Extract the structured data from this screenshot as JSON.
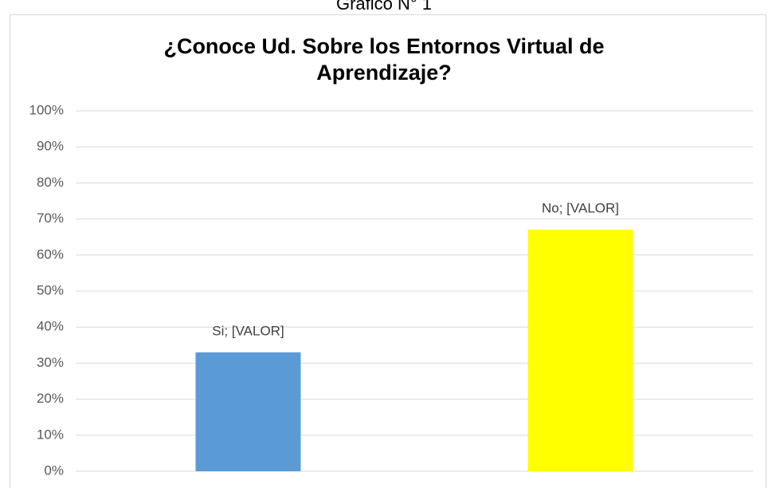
{
  "header": "Gráfico N° 1",
  "chart_data": {
    "type": "bar",
    "title": "¿Conoce Ud. Sobre los Entornos Virtual de Aprendizaje?",
    "values": [
      33,
      67
    ],
    "value_labels": [
      "Si; [VALOR]",
      "No; [VALOR]"
    ],
    "colors": [
      "#5b9bd5",
      "#ffff00"
    ],
    "ylim": [
      0,
      100
    ],
    "yticks": [
      {
        "value": 0,
        "label": "0%"
      },
      {
        "value": 10,
        "label": "10%"
      },
      {
        "value": 20,
        "label": "20%"
      },
      {
        "value": 30,
        "label": "30%"
      },
      {
        "value": 40,
        "label": "40%"
      },
      {
        "value": 50,
        "label": "50%"
      },
      {
        "value": 60,
        "label": "60%"
      },
      {
        "value": 70,
        "label": "70%"
      },
      {
        "value": 80,
        "label": "80%"
      },
      {
        "value": 90,
        "label": "90%"
      },
      {
        "value": 100,
        "label": "100%"
      }
    ],
    "grid": true
  }
}
